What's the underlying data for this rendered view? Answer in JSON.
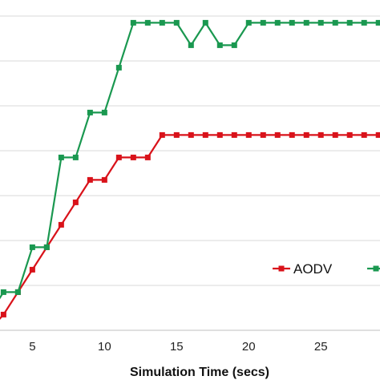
{
  "chart_data": {
    "type": "line",
    "xlabel": "Simulation Time (secs)",
    "ylabel": "",
    "xlim": [
      2.2,
      29.1
    ],
    "ylim": [
      0,
      7
    ],
    "x_ticks": [
      5,
      10,
      15,
      20,
      25
    ],
    "grid": "horizontal",
    "legend_position": "bottom-right",
    "series": [
      {
        "name": "AODV",
        "color": "#d9121a",
        "x": [
          2,
          3,
          4,
          5,
          6,
          7,
          8,
          9,
          10,
          11,
          12,
          13,
          14,
          15,
          16,
          17,
          18,
          19,
          20,
          21,
          22,
          23,
          24,
          25,
          26,
          27,
          28,
          29
        ],
        "y": [
          0,
          0.35,
          0.85,
          1.35,
          1.85,
          2.35,
          2.85,
          3.35,
          3.35,
          3.85,
          3.85,
          3.85,
          4.35,
          4.35,
          4.35,
          4.35,
          4.35,
          4.35,
          4.35,
          4.35,
          4.35,
          4.35,
          4.35,
          4.35,
          4.35,
          4.35,
          4.35,
          4.35
        ]
      },
      {
        "name": "",
        "color": "#1a9850",
        "x": [
          2,
          3,
          4,
          5,
          6,
          7,
          8,
          9,
          10,
          11,
          12,
          13,
          14,
          15,
          16,
          17,
          18,
          19,
          20,
          21,
          22,
          23,
          24,
          25,
          26,
          27,
          28,
          29
        ],
        "y": [
          0.35,
          0.85,
          0.85,
          1.85,
          1.85,
          3.85,
          3.85,
          4.85,
          4.85,
          5.85,
          6.85,
          6.85,
          6.85,
          6.85,
          6.35,
          6.85,
          6.35,
          6.35,
          6.85,
          6.85,
          6.85,
          6.85,
          6.85,
          6.85,
          6.85,
          6.85,
          6.85,
          6.85
        ]
      }
    ]
  }
}
